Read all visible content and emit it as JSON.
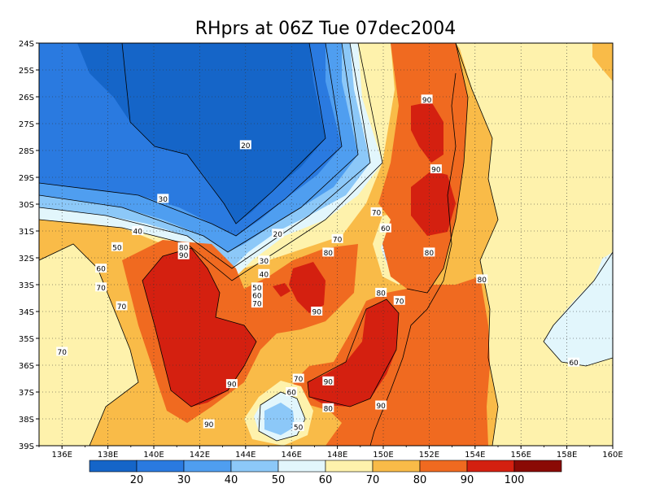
{
  "chart_data": {
    "type": "heatmap",
    "title": "RHprs at 06Z Tue 07dec2004",
    "x_ticks": [
      "136E",
      "138E",
      "140E",
      "142E",
      "144E",
      "146E",
      "148E",
      "150E",
      "152E",
      "154E",
      "156E",
      "158E",
      "160E"
    ],
    "y_ticks": [
      "24S",
      "25S",
      "26S",
      "27S",
      "28S",
      "29S",
      "30S",
      "31S",
      "32S",
      "33S",
      "34S",
      "35S",
      "36S",
      "37S",
      "38S",
      "39S"
    ],
    "xlim": [
      135,
      160
    ],
    "ylim": [
      -39,
      -24
    ],
    "grid": true,
    "levels": [
      10,
      20,
      30,
      40,
      50,
      60,
      70,
      80,
      90,
      100,
      110
    ],
    "colorbar_labels": [
      "20",
      "30",
      "40",
      "50",
      "60",
      "70",
      "80",
      "90",
      "100"
    ],
    "colors": [
      "#1565c8",
      "#2a7ae0",
      "#4f9ef0",
      "#8cc8f8",
      "#e2f6fc",
      "#fef2ac",
      "#f9bb48",
      "#f06a20",
      "#d42010",
      "#8a0a05"
    ],
    "contour_labels": [
      {
        "text": "20",
        "lon": 144.0,
        "lat": -27.8
      },
      {
        "text": "20",
        "lon": 145.4,
        "lat": -31.1
      },
      {
        "text": "30",
        "lon": 140.4,
        "lat": -29.8
      },
      {
        "text": "40",
        "lon": 139.3,
        "lat": -31.0
      },
      {
        "text": "50",
        "lon": 138.4,
        "lat": -31.6
      },
      {
        "text": "60",
        "lon": 137.7,
        "lat": -32.4
      },
      {
        "text": "70",
        "lon": 137.7,
        "lat": -33.1
      },
      {
        "text": "70",
        "lon": 138.6,
        "lat": -33.8
      },
      {
        "text": "70",
        "lon": 136.0,
        "lat": -35.5
      },
      {
        "text": "80",
        "lon": 141.3,
        "lat": -31.6
      },
      {
        "text": "90",
        "lon": 141.3,
        "lat": -31.9
      },
      {
        "text": "30",
        "lon": 144.8,
        "lat": -32.1
      },
      {
        "text": "40",
        "lon": 144.8,
        "lat": -32.6
      },
      {
        "text": "50",
        "lon": 144.5,
        "lat": -33.1
      },
      {
        "text": "60",
        "lon": 144.5,
        "lat": -33.4
      },
      {
        "text": "70",
        "lon": 144.5,
        "lat": -33.7
      },
      {
        "text": "80",
        "lon": 147.6,
        "lat": -31.8
      },
      {
        "text": "70",
        "lon": 148.0,
        "lat": -31.3
      },
      {
        "text": "90",
        "lon": 147.1,
        "lat": -34.0
      },
      {
        "text": "90",
        "lon": 143.4,
        "lat": -36.7
      },
      {
        "text": "90",
        "lon": 142.4,
        "lat": -38.2
      },
      {
        "text": "70",
        "lon": 146.3,
        "lat": -36.5
      },
      {
        "text": "60",
        "lon": 146.0,
        "lat": -37.0
      },
      {
        "text": "50",
        "lon": 146.3,
        "lat": -38.3
      },
      {
        "text": "90",
        "lon": 147.6,
        "lat": -36.6
      },
      {
        "text": "80",
        "lon": 147.6,
        "lat": -37.6
      },
      {
        "text": "90",
        "lon": 149.9,
        "lat": -37.5
      },
      {
        "text": "80",
        "lon": 149.9,
        "lat": -33.3
      },
      {
        "text": "70",
        "lon": 150.7,
        "lat": -33.6
      },
      {
        "text": "70",
        "lon": 149.7,
        "lat": -30.3
      },
      {
        "text": "60",
        "lon": 150.1,
        "lat": -30.9
      },
      {
        "text": "80",
        "lon": 152.0,
        "lat": -31.8
      },
      {
        "text": "80",
        "lon": 154.3,
        "lat": -32.8
      },
      {
        "text": "90",
        "lon": 151.9,
        "lat": -26.1
      },
      {
        "text": "90",
        "lon": 152.3,
        "lat": -28.7
      },
      {
        "text": "60",
        "lon": 158.3,
        "lat": -35.9
      }
    ]
  }
}
